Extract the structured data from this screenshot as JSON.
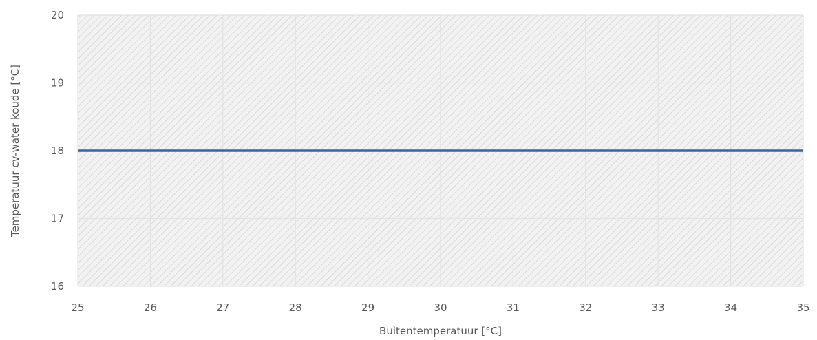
{
  "chart_data": {
    "type": "line",
    "title": "",
    "xlabel": "Buitentemperatuur [°C]",
    "ylabel": "Temperatuur cv-water koude [°C]",
    "xlim": [
      25,
      35
    ],
    "ylim": [
      16,
      20
    ],
    "x_ticks": [
      25,
      26,
      27,
      28,
      29,
      30,
      31,
      32,
      33,
      34,
      35
    ],
    "y_ticks": [
      16,
      17,
      18,
      19,
      20
    ],
    "grid": true,
    "legend": "none",
    "plot_background": "diagonal-hatch",
    "series": [
      {
        "color": "#3e6497",
        "x": [
          25,
          35
        ],
        "y": [
          18,
          18
        ]
      }
    ]
  }
}
